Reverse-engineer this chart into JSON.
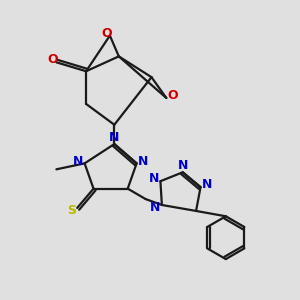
{
  "bg_color": "#e0e0e0",
  "bond_color": "#1a1a1a",
  "blue": "#0000cc",
  "red": "#cc0000",
  "yellow": "#b8b800",
  "line_width": 1.6,
  "font_size": 9,
  "xlim": [
    0,
    10
  ],
  "ylim": [
    0,
    10
  ]
}
